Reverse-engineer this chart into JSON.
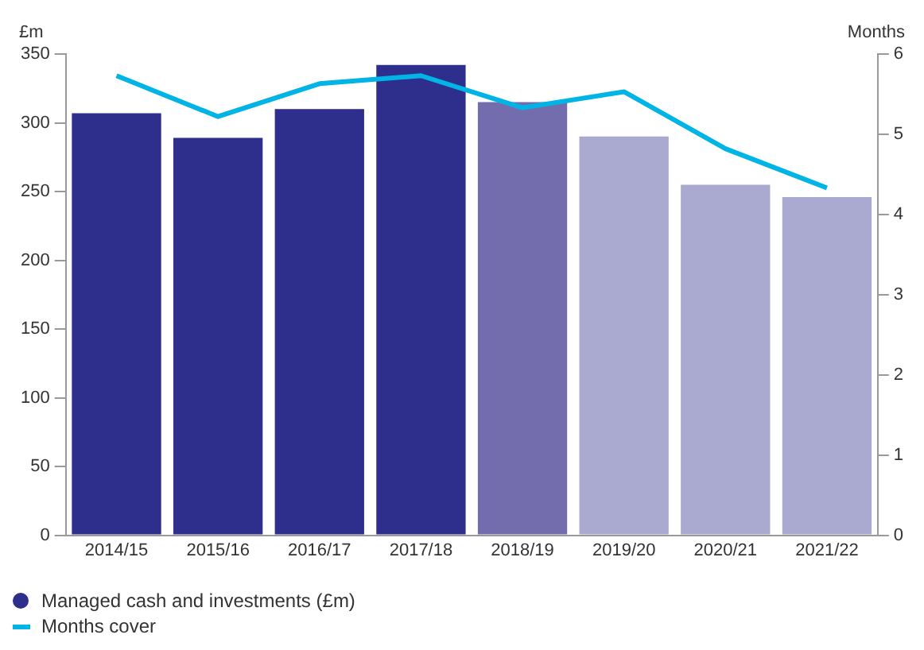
{
  "chart_data": {
    "type": "bar",
    "ylabel": "£m",
    "y2label": "Months",
    "categories": [
      "2014/15",
      "2015/16",
      "2016/17",
      "2017/18",
      "2018/19",
      "2019/20",
      "2020/21",
      "2021/22"
    ],
    "series": [
      {
        "name": "Managed cash and investments (£m)",
        "color": "#2e2e8c",
        "colors": [
          "#2e2e8c",
          "#2e2e8c",
          "#2e2e8c",
          "#2e2e8c",
          "#736cad",
          "#aaa9cf",
          "#aaa9cf",
          "#aaa9cf"
        ],
        "values": [
          307,
          289,
          310,
          342,
          315,
          290,
          255,
          246
        ]
      },
      {
        "name": "Months cover",
        "type": "line",
        "axis": "y2",
        "color": "#00b4e6",
        "values": [
          5.73,
          5.22,
          5.63,
          5.73,
          5.33,
          5.53,
          4.82,
          4.33
        ]
      }
    ],
    "ylim": [
      0,
      350
    ],
    "yticks": [
      0,
      50,
      100,
      150,
      200,
      250,
      300,
      350
    ],
    "y2lim": [
      0,
      6
    ],
    "y2ticks": [
      0,
      1,
      2,
      3,
      4,
      5,
      6
    ],
    "grid": false,
    "legend": "bottom",
    "marker": "none",
    "line_style": "solid"
  }
}
